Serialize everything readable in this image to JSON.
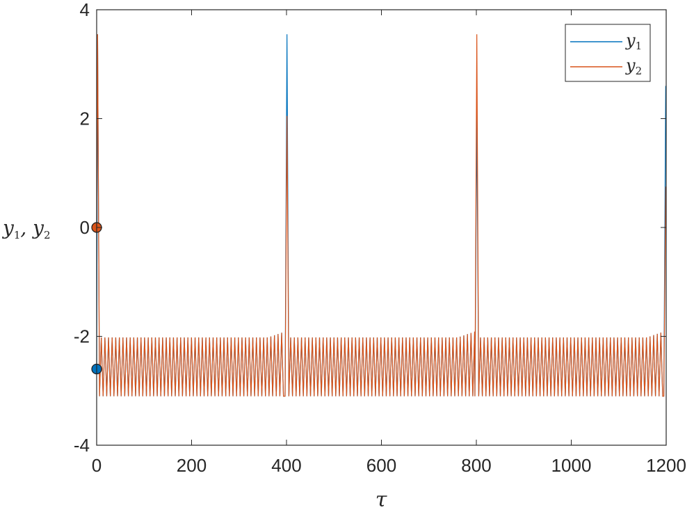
{
  "chart_data": {
    "type": "line",
    "title": "",
    "xlabel": "τ",
    "ylabel": "y1, y2",
    "xlim": [
      0,
      1200
    ],
    "ylim": [
      -4,
      4
    ],
    "xticks": [
      0,
      200,
      400,
      600,
      800,
      1000,
      1200
    ],
    "yticks": [
      -4,
      -2,
      0,
      2,
      4
    ],
    "xtick_labels": [
      "0",
      "200",
      "400",
      "600",
      "800",
      "1000",
      "1200"
    ],
    "ytick_labels": [
      "-4",
      "-2",
      "0",
      "2",
      "4"
    ],
    "grid": false,
    "legend": "top-right",
    "description": "Bursting oscillations: large spikes near tau=0, 400, 800, 1200 separated by fast oscillations between about -3.1 and -2.0",
    "series": [
      {
        "name": "y1",
        "color": "#0072BD",
        "spikes": [
          {
            "x": 2,
            "peak": 3.55
          },
          {
            "x": 401,
            "peak": 3.55
          },
          {
            "x": 801,
            "peak": 2.1
          },
          {
            "x": 1199,
            "peak": 2.6
          }
        ],
        "oscillation_min": -3.1,
        "oscillation_max": -2.02,
        "oscillation_period": 7.6
      },
      {
        "name": "y2",
        "color": "#D95319",
        "spikes": [
          {
            "x": 2,
            "peak": 3.55
          },
          {
            "x": 401,
            "peak": 2.05
          },
          {
            "x": 801,
            "peak": 3.55
          },
          {
            "x": 1199,
            "peak": 0.75
          }
        ],
        "oscillation_min": -3.1,
        "oscillation_max": -2.02,
        "oscillation_period": 7.6
      }
    ],
    "initial_points": [
      {
        "series": "y1",
        "x": 0,
        "y": -2.6,
        "color": "#0072BD"
      },
      {
        "series": "y2",
        "x": 0,
        "y": 0.0,
        "color": "#D95319"
      }
    ]
  }
}
